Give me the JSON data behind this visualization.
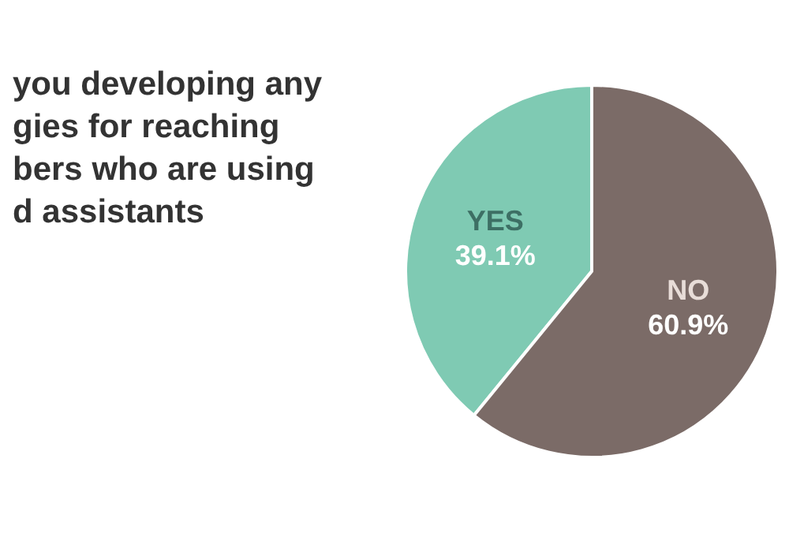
{
  "chart_data": {
    "type": "pie",
    "title": "you developing any\ngies for reaching\nbers who are using\nd assistants",
    "categories": [
      "YES",
      "NO"
    ],
    "values": [
      39.1,
      60.9
    ],
    "value_labels": [
      "39.1%",
      "60.9%"
    ],
    "colors": [
      "#7fcab3",
      "#7b6b67"
    ]
  }
}
